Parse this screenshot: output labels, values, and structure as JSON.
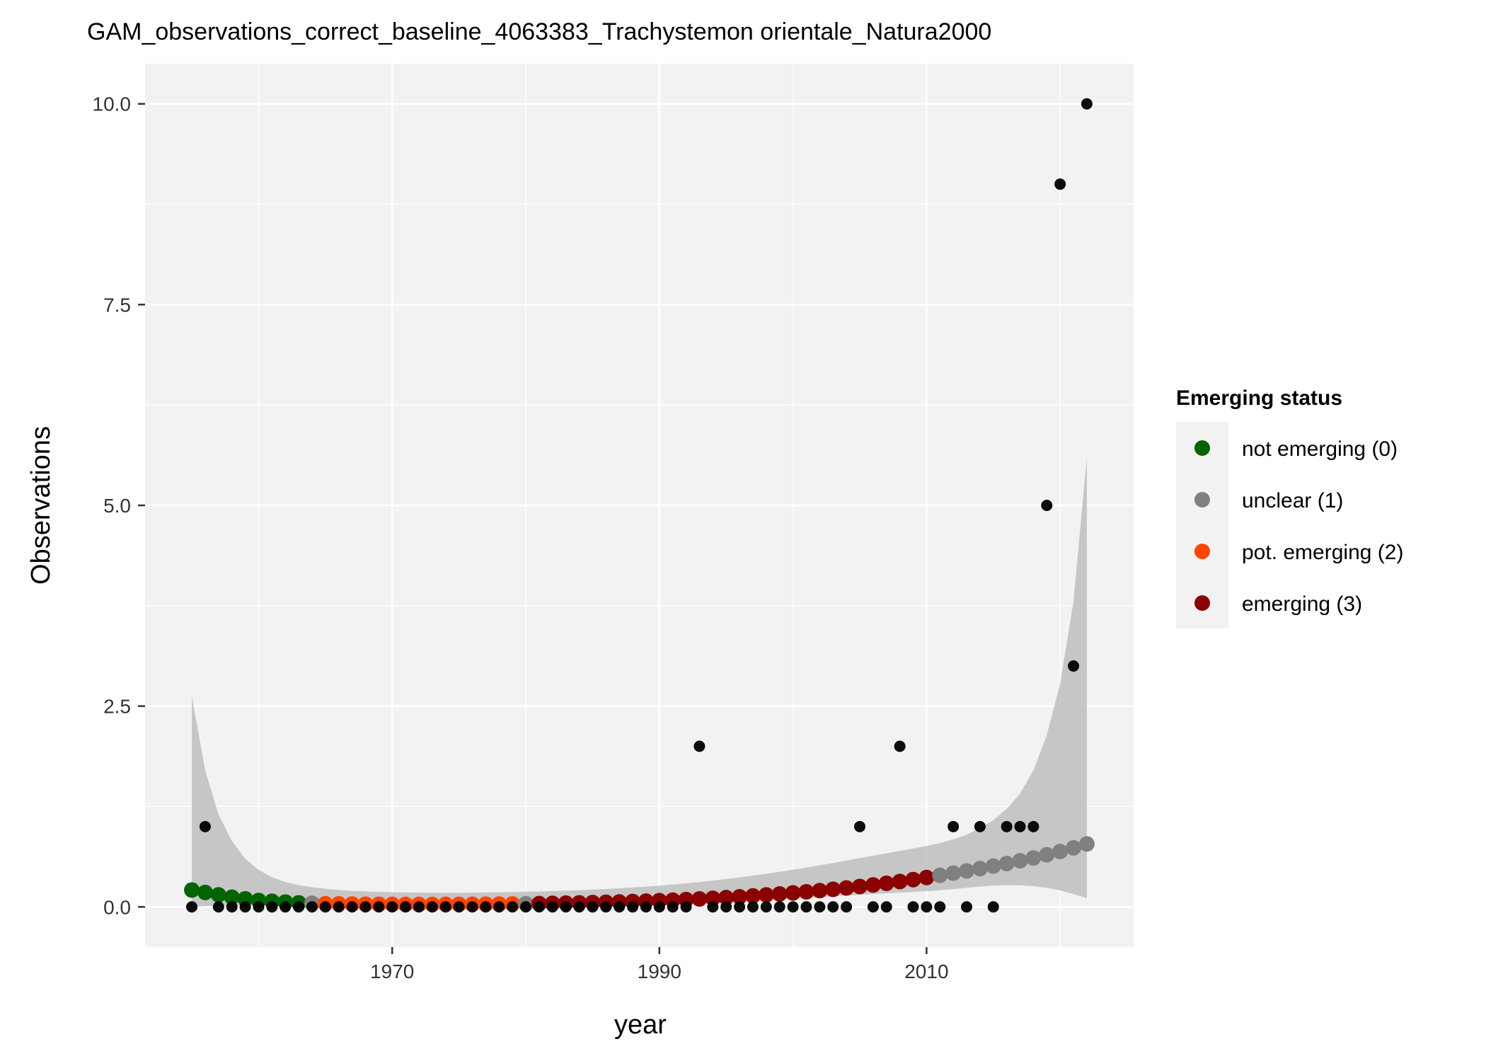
{
  "chart_data": {
    "type": "scatter",
    "title": "GAM_observations_correct_baseline_4063383_Trachystemon orientale_Natura2000",
    "xlabel": "year",
    "ylabel": "Observations",
    "xlim": [
      1951.5,
      2025.5
    ],
    "ylim": [
      -0.5,
      10.5
    ],
    "x_ticks": [
      1970,
      1990,
      2010
    ],
    "x_minor": [
      1960,
      1980,
      2000,
      2020
    ],
    "y_ticks": [
      0.0,
      2.5,
      5.0,
      7.5,
      10.0
    ],
    "y_tick_labels": [
      "0.0",
      "2.5",
      "5.0",
      "7.5",
      "10.0"
    ],
    "y_minor": [
      1.25,
      3.75,
      6.25,
      8.75
    ],
    "grid": true,
    "legend": {
      "title": "Emerging status",
      "placement": "right",
      "entries": [
        {
          "label": "not emerging (0)",
          "color": "#006400"
        },
        {
          "label": "unclear (1)",
          "color": "#808080"
        },
        {
          "label": "pot. emerging (2)",
          "color": "#FF4500"
        },
        {
          "label": "emerging (3)",
          "color": "#8B0000"
        }
      ]
    },
    "colors": {
      "panel": "#F2F2F2",
      "grid": "#FFFFFF",
      "ribbon": "#BEBEBE",
      "observations": "#000000"
    },
    "observations": {
      "x": [
        1955,
        1956,
        1957,
        1958,
        1959,
        1960,
        1961,
        1962,
        1963,
        1964,
        1965,
        1966,
        1967,
        1968,
        1969,
        1970,
        1971,
        1972,
        1973,
        1974,
        1975,
        1976,
        1977,
        1978,
        1979,
        1980,
        1981,
        1982,
        1983,
        1984,
        1985,
        1986,
        1987,
        1988,
        1989,
        1990,
        1991,
        1992,
        1993,
        1994,
        1995,
        1996,
        1997,
        1998,
        1999,
        2000,
        2001,
        2002,
        2003,
        2004,
        2005,
        2006,
        2007,
        2008,
        2009,
        2010,
        2011,
        2012,
        2013,
        2014,
        2015,
        2016,
        2017,
        2018,
        2019,
        2020,
        2021,
        2022
      ],
      "y": [
        0,
        1,
        0,
        0,
        0,
        0,
        0,
        0,
        0,
        0,
        0,
        0,
        0,
        0,
        0,
        0,
        0,
        0,
        0,
        0,
        0,
        0,
        0,
        0,
        0,
        0,
        0,
        0,
        0,
        0,
        0,
        0,
        0,
        0,
        0,
        0,
        0,
        0,
        2,
        0,
        0,
        0,
        0,
        0,
        0,
        0,
        0,
        0,
        0,
        0,
        1,
        0,
        0,
        2,
        0,
        0,
        0,
        1,
        0,
        1,
        0,
        1,
        1,
        1,
        5,
        9,
        3,
        10
      ]
    },
    "fit": {
      "x": [
        1955,
        1956,
        1957,
        1958,
        1959,
        1960,
        1961,
        1962,
        1963,
        1964,
        1965,
        1966,
        1967,
        1968,
        1969,
        1970,
        1971,
        1972,
        1973,
        1974,
        1975,
        1976,
        1977,
        1978,
        1979,
        1980,
        1981,
        1982,
        1983,
        1984,
        1985,
        1986,
        1987,
        1988,
        1989,
        1990,
        1991,
        1992,
        1993,
        1994,
        1995,
        1996,
        1997,
        1998,
        1999,
        2000,
        2001,
        2002,
        2003,
        2004,
        2005,
        2006,
        2007,
        2008,
        2009,
        2010,
        2011,
        2012,
        2013,
        2014,
        2015,
        2016,
        2017,
        2018,
        2019,
        2020,
        2021,
        2022
      ],
      "y": [
        0.21,
        0.18,
        0.15,
        0.12,
        0.1,
        0.08,
        0.07,
        0.06,
        0.05,
        0.045,
        0.04,
        0.038,
        0.036,
        0.034,
        0.033,
        0.032,
        0.031,
        0.031,
        0.031,
        0.032,
        0.032,
        0.033,
        0.034,
        0.035,
        0.037,
        0.039,
        0.041,
        0.044,
        0.047,
        0.05,
        0.054,
        0.058,
        0.062,
        0.067,
        0.072,
        0.078,
        0.084,
        0.091,
        0.099,
        0.107,
        0.116,
        0.126,
        0.137,
        0.149,
        0.161,
        0.174,
        0.188,
        0.203,
        0.219,
        0.236,
        0.254,
        0.273,
        0.294,
        0.316,
        0.34,
        0.366,
        0.393,
        0.42,
        0.448,
        0.477,
        0.508,
        0.54,
        0.574,
        0.61,
        0.649,
        0.69,
        0.735,
        0.784
      ],
      "status": [
        0,
        0,
        0,
        0,
        0,
        0,
        0,
        0,
        0,
        1,
        2,
        2,
        2,
        2,
        2,
        2,
        2,
        2,
        2,
        2,
        2,
        2,
        2,
        2,
        2,
        1,
        3,
        3,
        3,
        3,
        3,
        3,
        3,
        3,
        3,
        3,
        3,
        3,
        3,
        3,
        3,
        3,
        3,
        3,
        3,
        3,
        3,
        3,
        3,
        3,
        3,
        3,
        3,
        3,
        3,
        3,
        1,
        1,
        1,
        1,
        1,
        1,
        1,
        1,
        1,
        1,
        1,
        1
      ],
      "upper": [
        2.62,
        1.7,
        1.15,
        0.82,
        0.6,
        0.46,
        0.37,
        0.31,
        0.27,
        0.245,
        0.225,
        0.21,
        0.2,
        0.193,
        0.187,
        0.183,
        0.18,
        0.178,
        0.177,
        0.177,
        0.177,
        0.178,
        0.18,
        0.182,
        0.185,
        0.188,
        0.192,
        0.197,
        0.202,
        0.208,
        0.215,
        0.223,
        0.232,
        0.242,
        0.253,
        0.265,
        0.279,
        0.294,
        0.31,
        0.328,
        0.347,
        0.367,
        0.389,
        0.412,
        0.437,
        0.463,
        0.49,
        0.518,
        0.547,
        0.577,
        0.607,
        0.637,
        0.667,
        0.697,
        0.727,
        0.758,
        0.795,
        0.84,
        0.9,
        0.98,
        1.08,
        1.22,
        1.41,
        1.7,
        2.14,
        2.78,
        3.8,
        5.6
      ],
      "lower": [
        0.0,
        0.01,
        0.012,
        0.014,
        0.015,
        0.015,
        0.016,
        0.016,
        0.016,
        0.017,
        0.017,
        0.018,
        0.018,
        0.018,
        0.019,
        0.019,
        0.019,
        0.02,
        0.02,
        0.021,
        0.021,
        0.022,
        0.023,
        0.024,
        0.025,
        0.027,
        0.028,
        0.03,
        0.032,
        0.034,
        0.036,
        0.038,
        0.041,
        0.044,
        0.047,
        0.051,
        0.055,
        0.059,
        0.063,
        0.068,
        0.074,
        0.08,
        0.086,
        0.093,
        0.1,
        0.108,
        0.116,
        0.124,
        0.133,
        0.142,
        0.151,
        0.16,
        0.169,
        0.178,
        0.187,
        0.196,
        0.208,
        0.222,
        0.238,
        0.253,
        0.265,
        0.27,
        0.268,
        0.258,
        0.238,
        0.205,
        0.16,
        0.11
      ]
    }
  }
}
